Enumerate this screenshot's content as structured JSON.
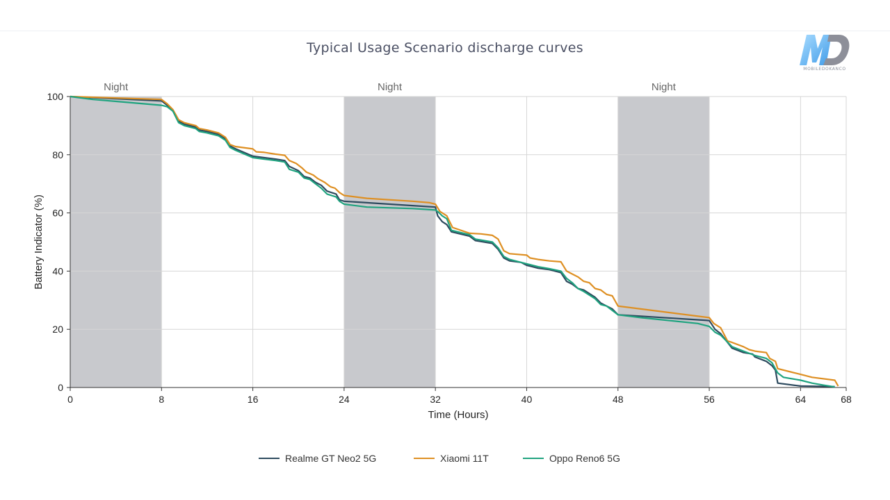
{
  "chart_data": {
    "type": "line",
    "title": "Typical Usage Scenario discharge curves",
    "xlabel": "Time (Hours)",
    "ylabel": "Battery Indicator (%)",
    "xlim": [
      0,
      68
    ],
    "ylim": [
      0,
      100
    ],
    "xticks": [
      0,
      8,
      16,
      24,
      32,
      40,
      48,
      56,
      64,
      68
    ],
    "yticks": [
      0,
      20,
      40,
      60,
      80,
      100
    ],
    "grid": true,
    "night_periods": [
      {
        "label": "Night",
        "start": 0,
        "end": 8
      },
      {
        "label": "Night",
        "start": 24,
        "end": 32
      },
      {
        "label": "Night",
        "start": 48,
        "end": 56
      }
    ],
    "legend_position": "bottom-center",
    "series": [
      {
        "name": "Realme GT Neo2 5G",
        "color": "#2d4a5e",
        "points": [
          [
            0,
            100
          ],
          [
            8,
            98.5
          ],
          [
            8.5,
            97
          ],
          [
            9,
            95
          ],
          [
            9.5,
            91.5
          ],
          [
            10,
            90.5
          ],
          [
            11,
            89.5
          ],
          [
            11.3,
            88.5
          ],
          [
            12,
            88
          ],
          [
            13,
            87
          ],
          [
            13.6,
            85.5
          ],
          [
            14,
            83
          ],
          [
            14.5,
            82
          ],
          [
            16,
            79.5
          ],
          [
            17,
            79
          ],
          [
            18,
            78.5
          ],
          [
            18.8,
            78
          ],
          [
            19.2,
            76
          ],
          [
            20,
            74.5
          ],
          [
            20.5,
            72.5
          ],
          [
            21,
            72
          ],
          [
            21.5,
            70.5
          ],
          [
            22,
            69.5
          ],
          [
            22.5,
            67.5
          ],
          [
            23.3,
            66.5
          ],
          [
            23.6,
            64.5
          ],
          [
            24,
            64
          ],
          [
            26,
            63.5
          ],
          [
            30,
            62.5
          ],
          [
            32,
            62
          ],
          [
            32.2,
            59
          ],
          [
            32.6,
            57
          ],
          [
            33,
            56
          ],
          [
            33.4,
            53.5
          ],
          [
            35,
            52
          ],
          [
            35.5,
            50.5
          ],
          [
            37,
            49.5
          ],
          [
            37.5,
            47.5
          ],
          [
            38,
            44.5
          ],
          [
            38.5,
            43.5
          ],
          [
            39.5,
            43
          ],
          [
            40,
            42
          ],
          [
            41,
            41
          ],
          [
            42,
            40.5
          ],
          [
            43,
            39.5
          ],
          [
            43.5,
            36.5
          ],
          [
            44,
            35.5
          ],
          [
            44.5,
            34
          ],
          [
            45,
            33.5
          ],
          [
            46,
            31
          ],
          [
            46.5,
            29
          ],
          [
            47,
            28
          ],
          [
            47.5,
            27
          ],
          [
            48,
            25
          ],
          [
            50,
            24.5
          ],
          [
            56,
            23
          ],
          [
            56.5,
            20
          ],
          [
            57,
            18.5
          ],
          [
            57.5,
            16
          ],
          [
            58,
            13.5
          ],
          [
            59,
            12
          ],
          [
            59.8,
            11.5
          ],
          [
            60,
            10.5
          ],
          [
            61,
            9
          ],
          [
            61.5,
            7.5
          ],
          [
            61.8,
            6
          ],
          [
            62,
            1.5
          ],
          [
            64,
            0.5
          ],
          [
            67,
            0.3
          ]
        ]
      },
      {
        "name": "Xiaomi 11T",
        "color": "#de8f22",
        "points": [
          [
            0,
            100
          ],
          [
            8,
            99
          ],
          [
            8.5,
            97.5
          ],
          [
            9,
            95.5
          ],
          [
            9.5,
            92
          ],
          [
            10,
            91
          ],
          [
            11,
            90
          ],
          [
            11.3,
            89
          ],
          [
            12,
            88.5
          ],
          [
            13,
            87.5
          ],
          [
            13.6,
            86
          ],
          [
            14,
            83.5
          ],
          [
            14.5,
            82.8
          ],
          [
            16,
            82
          ],
          [
            16.3,
            81
          ],
          [
            17,
            80.8
          ],
          [
            18,
            80.2
          ],
          [
            18.8,
            79.8
          ],
          [
            19.2,
            78
          ],
          [
            19.8,
            77
          ],
          [
            20.3,
            75.5
          ],
          [
            20.7,
            74
          ],
          [
            21.3,
            73
          ],
          [
            21.7,
            71.8
          ],
          [
            22.3,
            70.5
          ],
          [
            22.8,
            69
          ],
          [
            23.2,
            68.5
          ],
          [
            23.6,
            67
          ],
          [
            24,
            66
          ],
          [
            26,
            65
          ],
          [
            30,
            64
          ],
          [
            31.5,
            63.5
          ],
          [
            32,
            63
          ],
          [
            32.4,
            60.5
          ],
          [
            33,
            59
          ],
          [
            33.5,
            55
          ],
          [
            35,
            53
          ],
          [
            36,
            52.8
          ],
          [
            37,
            52.3
          ],
          [
            37.5,
            51
          ],
          [
            38,
            47
          ],
          [
            38.5,
            46
          ],
          [
            40,
            45.5
          ],
          [
            40.3,
            44.5
          ],
          [
            41,
            44
          ],
          [
            42,
            43.5
          ],
          [
            43,
            43.2
          ],
          [
            43.5,
            40
          ],
          [
            44,
            39
          ],
          [
            44.5,
            38
          ],
          [
            45,
            36.5
          ],
          [
            45.5,
            36
          ],
          [
            46,
            34
          ],
          [
            46.5,
            33.5
          ],
          [
            47,
            32
          ],
          [
            47.5,
            31.5
          ],
          [
            48,
            28
          ],
          [
            50,
            27
          ],
          [
            56,
            24
          ],
          [
            56.4,
            22
          ],
          [
            57,
            20.5
          ],
          [
            57.6,
            16
          ],
          [
            58,
            15.5
          ],
          [
            59,
            14
          ],
          [
            59.5,
            13
          ],
          [
            60,
            12.5
          ],
          [
            61,
            12
          ],
          [
            61.3,
            10
          ],
          [
            61.8,
            9
          ],
          [
            62,
            6.5
          ],
          [
            63,
            5.5
          ],
          [
            64,
            4.5
          ],
          [
            65,
            3.5
          ],
          [
            67,
            2.5
          ],
          [
            67.3,
            0.5
          ]
        ]
      },
      {
        "name": "Oppo Reno6 5G",
        "color": "#1fa37f",
        "points": [
          [
            0,
            100
          ],
          [
            2,
            99
          ],
          [
            5,
            98
          ],
          [
            8,
            97
          ],
          [
            8.5,
            96.5
          ],
          [
            9,
            95
          ],
          [
            9.5,
            91
          ],
          [
            10,
            90
          ],
          [
            11,
            89
          ],
          [
            11.3,
            88
          ],
          [
            12,
            87.5
          ],
          [
            13,
            86.5
          ],
          [
            13.6,
            85
          ],
          [
            14,
            82.5
          ],
          [
            14.5,
            81.5
          ],
          [
            16,
            79
          ],
          [
            17,
            78.5
          ],
          [
            18,
            78
          ],
          [
            18.8,
            77.5
          ],
          [
            19.2,
            75
          ],
          [
            20,
            74
          ],
          [
            20.5,
            72
          ],
          [
            21,
            71.5
          ],
          [
            21.5,
            70
          ],
          [
            22,
            68.5
          ],
          [
            22.5,
            66.5
          ],
          [
            23.3,
            65.5
          ],
          [
            23.6,
            64
          ],
          [
            24,
            63
          ],
          [
            26,
            62
          ],
          [
            30,
            61.5
          ],
          [
            32,
            61
          ],
          [
            32.2,
            60.5
          ],
          [
            32.6,
            59
          ],
          [
            33,
            58
          ],
          [
            33.4,
            54
          ],
          [
            35,
            52.5
          ],
          [
            35.5,
            51
          ],
          [
            37,
            50
          ],
          [
            37.5,
            48
          ],
          [
            38,
            45
          ],
          [
            38.5,
            44
          ],
          [
            39.5,
            43
          ],
          [
            40,
            42.5
          ],
          [
            41,
            41.5
          ],
          [
            42,
            40.8
          ],
          [
            43,
            40
          ],
          [
            43.5,
            37.5
          ],
          [
            44,
            36
          ],
          [
            44.5,
            34
          ],
          [
            45,
            33
          ],
          [
            46,
            30.5
          ],
          [
            46.5,
            28.5
          ],
          [
            47,
            28
          ],
          [
            47.5,
            26.5
          ],
          [
            48,
            25
          ],
          [
            50,
            24
          ],
          [
            55,
            22
          ],
          [
            56,
            21
          ],
          [
            56.5,
            19
          ],
          [
            57,
            18
          ],
          [
            57.5,
            16
          ],
          [
            58,
            14
          ],
          [
            59,
            12.5
          ],
          [
            60,
            11
          ],
          [
            61,
            10
          ],
          [
            61.5,
            8.5
          ],
          [
            62,
            5
          ],
          [
            62.5,
            3.5
          ],
          [
            64,
            2.5
          ],
          [
            65,
            1.5
          ],
          [
            66,
            0.8
          ],
          [
            67,
            0.2
          ]
        ]
      }
    ]
  },
  "logo": {
    "letters": "MD",
    "caption": "MOBILEDOKANCO"
  }
}
